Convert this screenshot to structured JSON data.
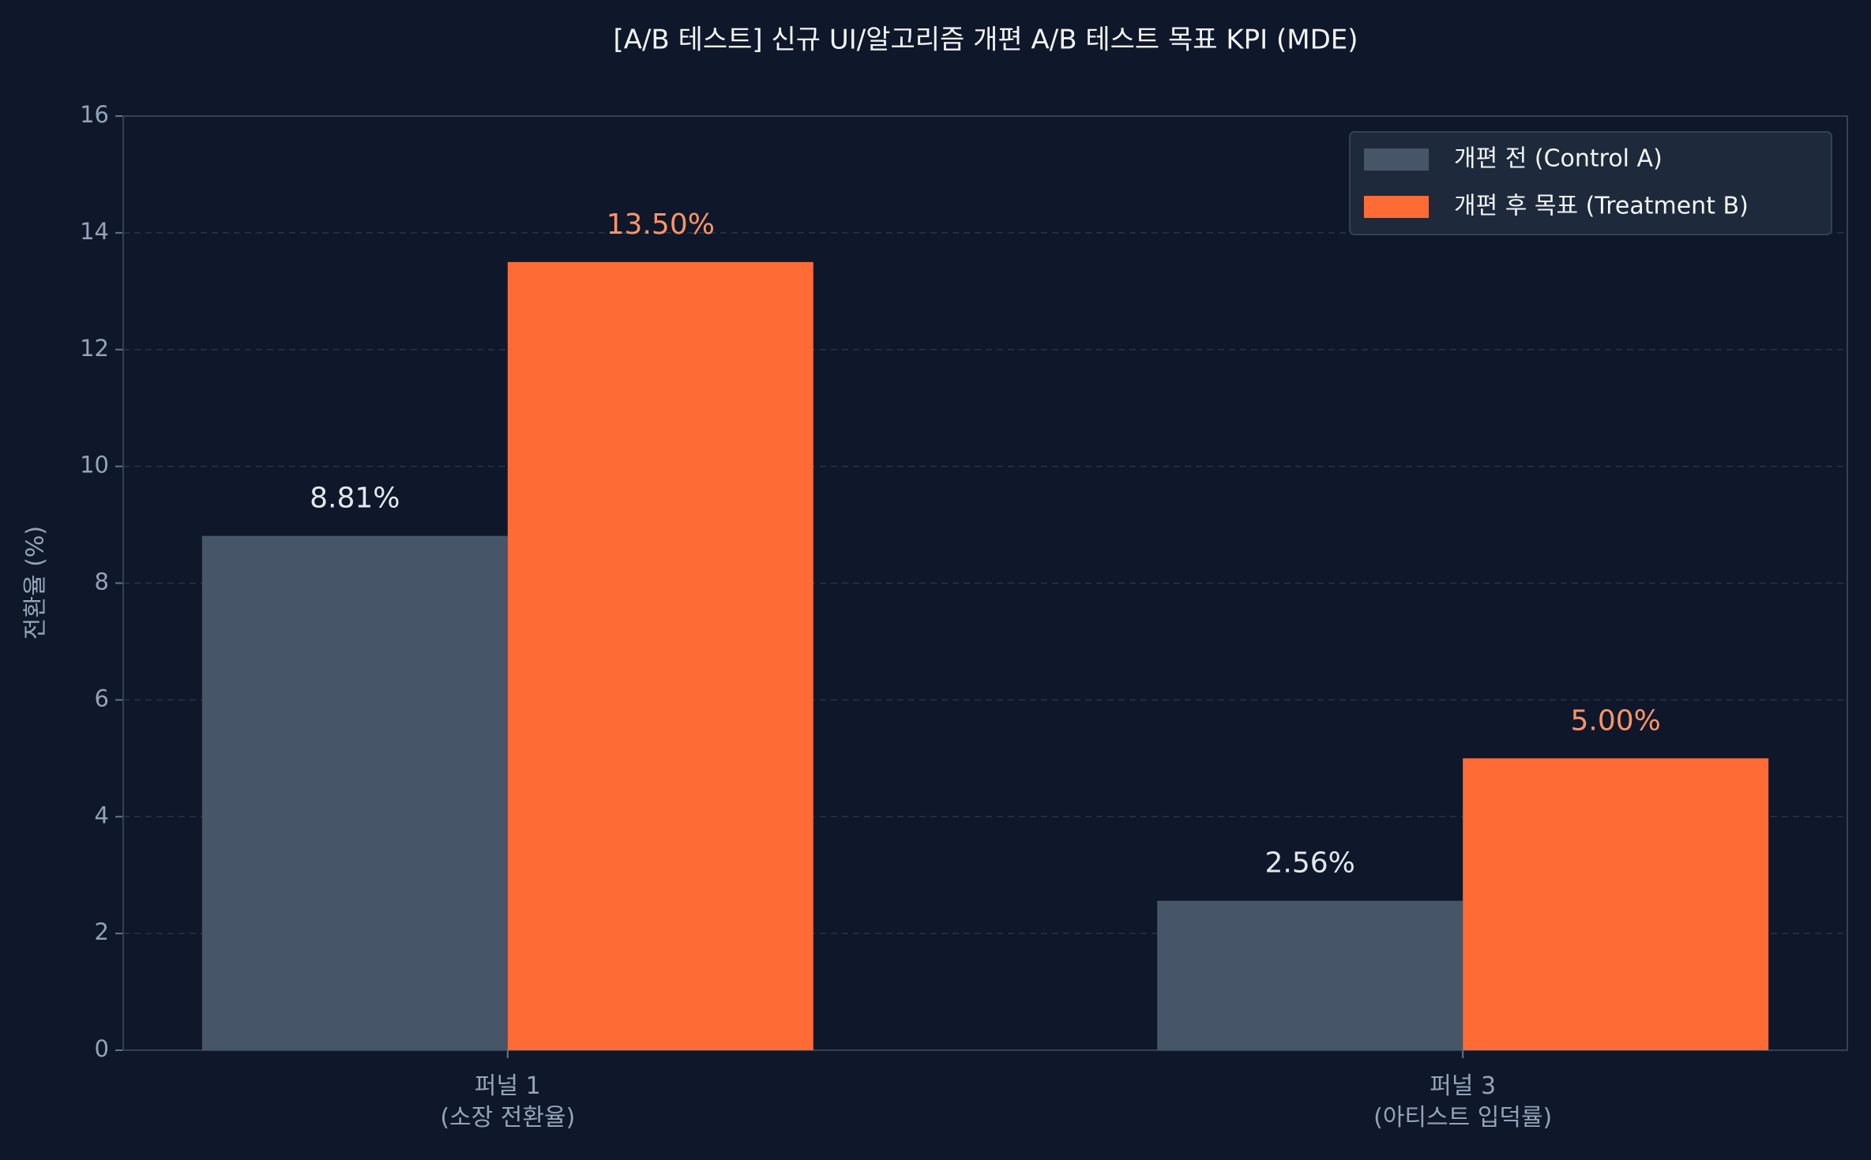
{
  "chart_data": {
    "type": "bar",
    "title": "[A/B 테스트] 신규 UI/알고리즘 개편 A/B 테스트 목표 KPI (MDE)",
    "y_label": "전환율 (%)",
    "categories": [
      "퍼널 1\n(소장 전환율)",
      "퍼널 3\n(아티스트 입덕률)"
    ],
    "series": [
      {
        "name": "개편 전 (Control A)",
        "color": "#475569",
        "label_color": "#e2e8f0",
        "values": [
          8.81,
          2.56
        ],
        "value_labels": [
          "8.81%",
          "2.56%"
        ]
      },
      {
        "name": "개편 후 목표 (Treatment B)",
        "color": "#ff6b35",
        "label_color": "#ff9466",
        "values": [
          13.5,
          5.0
        ],
        "value_labels": [
          "13.50%",
          "5.00%"
        ]
      }
    ],
    "ylim": [
      0,
      16
    ],
    "yticks": [
      0,
      2,
      4,
      6,
      8,
      10,
      12,
      14,
      16
    ],
    "grid": true,
    "legend": "upper right"
  }
}
